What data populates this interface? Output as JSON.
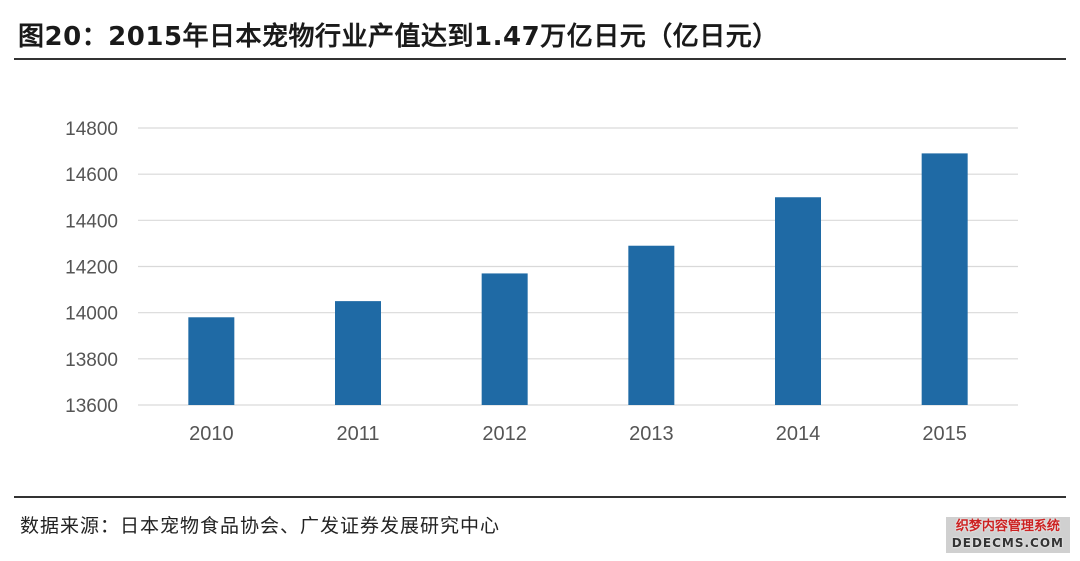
{
  "figure": {
    "title": "图20：2015年日本宠物行业产值达到1.47万亿日元（亿日元）",
    "source": "数据来源：日本宠物食品协会、广发证券发展研究中心",
    "watermark_line1": "织梦内容管理系统",
    "watermark_line2": "DEDECMS.COM"
  },
  "colors": {
    "bar": "#1f6aa5",
    "grid": "#d9d9d9",
    "axis_text": "#555555"
  },
  "chart_data": {
    "type": "bar",
    "title": "图20：2015年日本宠物行业产值达到1.47万亿日元（亿日元）",
    "categories": [
      "2010",
      "2011",
      "2012",
      "2013",
      "2014",
      "2015"
    ],
    "values": [
      13980,
      14050,
      14170,
      14290,
      14500,
      14690
    ],
    "yticks": [
      13600,
      13800,
      14000,
      14200,
      14400,
      14600,
      14800
    ],
    "ylim": [
      13600,
      14800
    ],
    "xlabel": "",
    "ylabel": "",
    "grid": true,
    "legend": "none"
  }
}
